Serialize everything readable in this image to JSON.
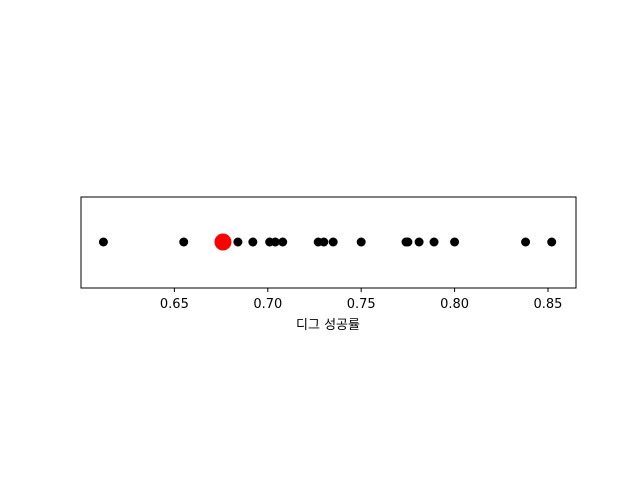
{
  "chart_data": {
    "type": "scatter",
    "title": "",
    "xlabel": "디그 성공률",
    "ylabel": "",
    "xlim": [
      0.6,
      0.865
    ],
    "xticks": [
      0.65,
      0.7,
      0.75,
      0.8,
      0.85
    ],
    "xtick_labels": [
      "0.65",
      "0.70",
      "0.75",
      "0.80",
      "0.85"
    ],
    "grid": false,
    "series": [
      {
        "values": [
          0.612,
          0.655,
          0.684,
          0.692,
          0.701,
          0.704,
          0.708,
          0.727,
          0.73,
          0.735,
          0.75,
          0.774,
          0.775,
          0.781,
          0.789,
          0.8,
          0.838,
          0.852
        ],
        "color": "#000000"
      },
      {
        "values": [
          0.676
        ],
        "color": "#ff0000",
        "highlight": true
      }
    ]
  }
}
